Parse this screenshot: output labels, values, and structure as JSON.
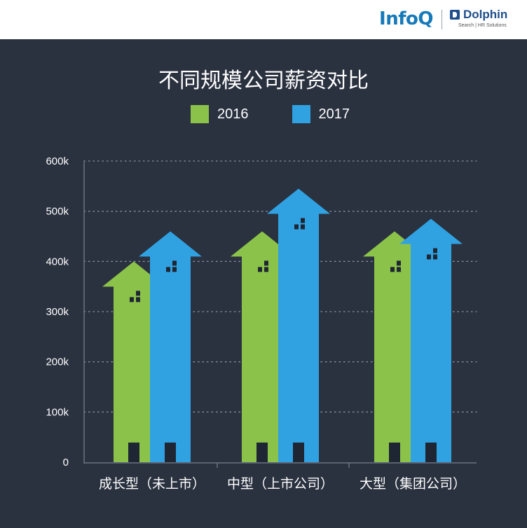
{
  "brand": {
    "infoq": "InfoQ",
    "dolphin": "Dolphin",
    "dolphin_sub": "Search | HR Solutions"
  },
  "colors": {
    "background": "#2a313f",
    "series_2016": "#8bc34a",
    "series_2017": "#30a2e2",
    "window": "#1f2633"
  },
  "chart_data": {
    "type": "bar",
    "title": "不同规模公司薪资对比",
    "categories": [
      "成长型（未上市）",
      "中型（上市公司）",
      "大型（集团公司）"
    ],
    "series": [
      {
        "name": "2016",
        "values": [
          400,
          460,
          460
        ]
      },
      {
        "name": "2017",
        "values": [
          460,
          545,
          485
        ]
      }
    ],
    "y_ticks": [
      "0",
      "100k",
      "200k",
      "300k",
      "400k",
      "500k",
      "600k"
    ],
    "ylim": [
      0,
      600
    ],
    "unit": "k",
    "grid": true,
    "legend": "top-center",
    "bar_style": "house-shaped arrows"
  }
}
